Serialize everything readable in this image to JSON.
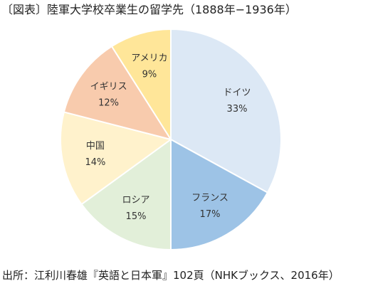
{
  "page": {
    "title": "〔図表〕陸軍大学校卒業生の留学先（1888年−1936年）",
    "source": "出所：江利川春雄『英語と日本軍』102頁（NHKブックス、2016年）"
  },
  "chart_data": {
    "type": "pie",
    "title": "〔図表〕陸軍大学校卒業生の留学先（1888年−1936年）",
    "unit": "%",
    "start": "top",
    "direction": "clockwise",
    "slices": [
      {
        "name": "ドイツ",
        "value": 33,
        "value_label": "33%",
        "color": "#dce8f5"
      },
      {
        "name": "フランス",
        "value": 17,
        "value_label": "17%",
        "color": "#9dc3e6"
      },
      {
        "name": "ロシア",
        "value": 15,
        "value_label": "15%",
        "color": "#e2efd9"
      },
      {
        "name": "中国",
        "value": 14,
        "value_label": "14%",
        "color": "#fff2cc"
      },
      {
        "name": "イギリス",
        "value": 12,
        "value_label": "12%",
        "color": "#f8cbad"
      },
      {
        "name": "アメリカ",
        "value": 9,
        "value_label": "9%",
        "color": "#ffe699"
      }
    ]
  }
}
